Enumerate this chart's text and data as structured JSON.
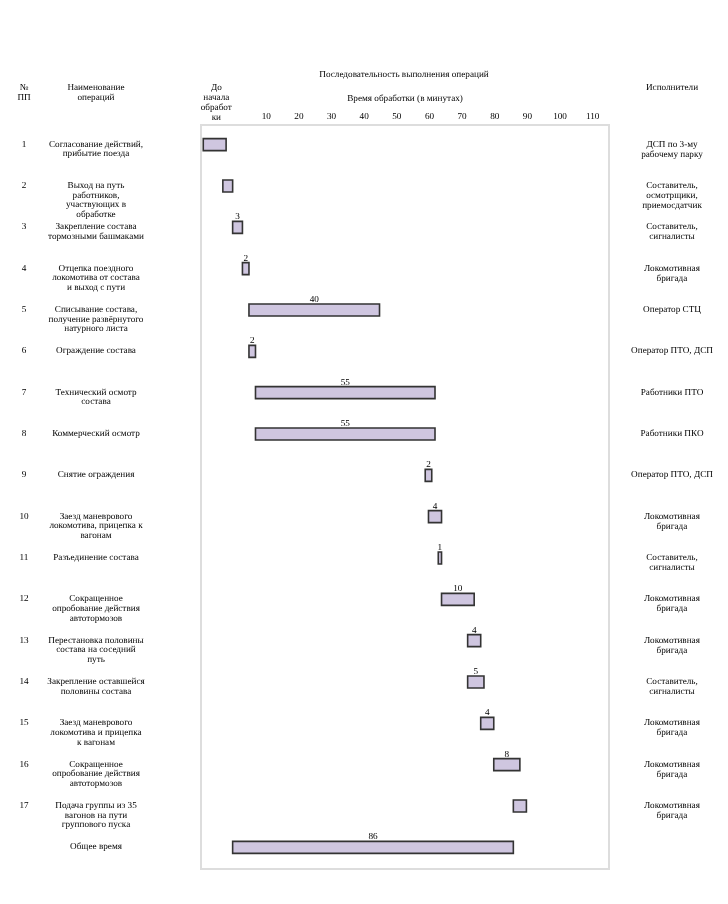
{
  "chart_data": {
    "type": "bar",
    "orientation": "horizontal",
    "title": "Последовательность выполнения операций",
    "xlabel": "Время обработки (в минутах)",
    "ylabel": "Наименование операций",
    "categories": [
      "Согласование действий, прибытие поезда",
      "Выход на путь работников, участвующих в обработке",
      "Закрепление состава тормозными башмаками",
      "Отцепка поездного локомотива от состава и выход с пути",
      "Списывание состава, получение развёрнутого натурного листа",
      "Ограждение состава",
      "Технический осмотр состава",
      "Коммерческий осмотр",
      "Снятие ограждения",
      "Заезд маневрового локомотива, прицепка к вагонам",
      "Разъединение состава",
      "Сокращенное опробование действия автотормозов",
      "Перестановка половины состава на соседний путь",
      "Закрепление оставшейся половины состава",
      "Заезд маневрового локомотива и прицепка к вагонам",
      "Сокращенное опробование действия автотормозов",
      "Подача группы из 35 вагонов на пути группового пуска",
      "Общее время"
    ],
    "base": [
      -9,
      -3,
      0,
      3,
      5,
      5,
      7,
      7,
      59,
      60,
      63,
      64,
      72,
      72,
      76,
      80,
      86,
      0
    ],
    "values": [
      7,
      3,
      3,
      2,
      40,
      2,
      55,
      55,
      2,
      4,
      1,
      10,
      4,
      5,
      4,
      8,
      4,
      86
    ],
    "value_labels": [
      null,
      null,
      "3",
      "2",
      "40",
      "2",
      "55",
      "55",
      "2",
      "4",
      "1",
      "10",
      "4",
      "5",
      "4",
      "8",
      null,
      "86"
    ],
    "color": "#cfc6e0",
    "xlim": [
      -10,
      115
    ],
    "xticks": [
      10,
      20,
      30,
      40,
      50,
      60,
      70,
      80,
      90,
      100,
      110
    ],
    "grid": false,
    "annotations": [
      "№ ПП",
      "До начала обработки",
      "Исполнители",
      "1",
      "ДСП по 3-му рабочему парку",
      "2",
      "Составитель, осмотрщики, приемосдатчик",
      "3",
      "Составитель, сигналисты",
      "4",
      "Локомотивная бригада",
      "5",
      "Оператор СТЦ",
      "6",
      "Оператор ПТО, ДСП",
      "7",
      "Работники ПТО",
      "8",
      "Работники ПКО",
      "9",
      "Оператор ПТО, ДСП",
      "10",
      "Локомотивная бригада",
      "11",
      "Составитель, сигналисты",
      "12",
      "Локомотивная бригада",
      "13",
      "Локомотивная бригада",
      "14",
      "Составитель, сигналисты",
      "15",
      "Локомотивная бригада",
      "16",
      "Локомотивная бригада",
      "17",
      "Локомотивная бригада"
    ]
  }
}
